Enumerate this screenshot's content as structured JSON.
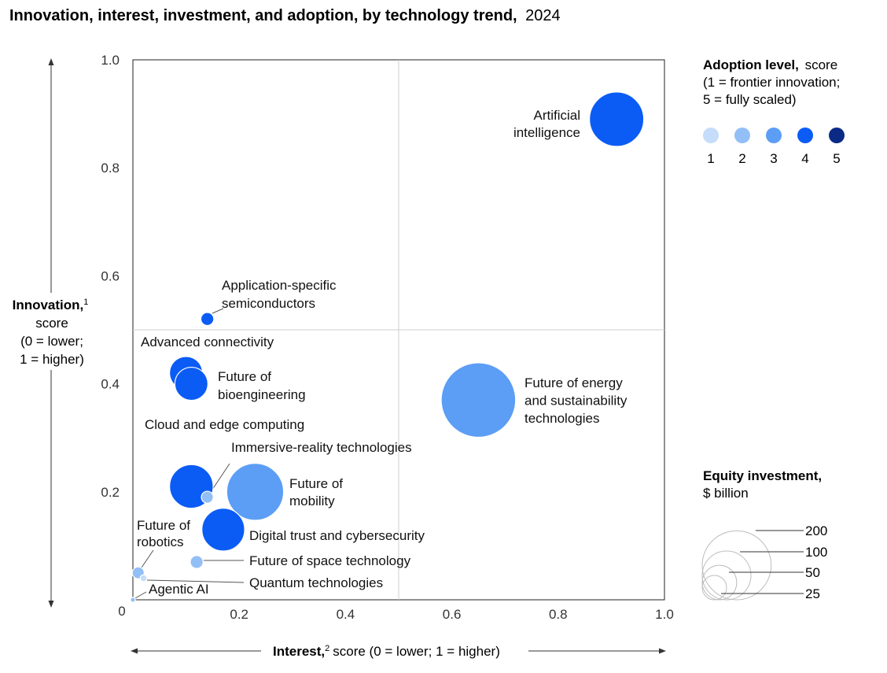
{
  "header": {
    "title_bold": "Innovation, interest, investment, and adoption, by technology trend,",
    "title_year": "2024"
  },
  "axes": {
    "y_title_bold": "Innovation,",
    "y_title_sup": "1",
    "y_title_lines": [
      "score",
      "(0 = lower;",
      "1 = higher)"
    ],
    "x_title_bold": "Interest,",
    "x_title_sup": "2",
    "x_title_rest": "score (0 = lower; 1 = higher)"
  },
  "adoption_legend": {
    "title_bold": "Adoption level,",
    "title_rest": "score",
    "lines": [
      "(1 = frontier innovation;",
      "5 = fully scaled)"
    ],
    "levels": [
      {
        "label": "1",
        "color": "#c6dcfb"
      },
      {
        "label": "2",
        "color": "#93bff7"
      },
      {
        "label": "3",
        "color": "#5c9ef5"
      },
      {
        "label": "4",
        "color": "#0b5cf5"
      },
      {
        "label": "5",
        "color": "#0b2a86"
      }
    ]
  },
  "size_legend": {
    "title_bold": "Equity investment,",
    "title_rest": "$ billion",
    "sizes": [
      {
        "label": "200",
        "value": 200
      },
      {
        "label": "100",
        "value": 100
      },
      {
        "label": "50",
        "value": 50
      },
      {
        "label": "25",
        "value": 25
      }
    ]
  },
  "chart_data": {
    "type": "scatter",
    "xlim": [
      0,
      1
    ],
    "ylim": [
      0,
      1
    ],
    "origin_label": "0",
    "x_ticks": [
      {
        "value": 0.2,
        "label": "0.2"
      },
      {
        "value": 0.4,
        "label": "0.4"
      },
      {
        "value": 0.6,
        "label": "0.6"
      },
      {
        "value": 0.8,
        "label": "0.8"
      },
      {
        "value": 1.0,
        "label": "1.0"
      }
    ],
    "y_ticks": [
      {
        "value": 0.2,
        "label": "0.2"
      },
      {
        "value": 0.4,
        "label": "0.4"
      },
      {
        "value": 0.6,
        "label": "0.6"
      },
      {
        "value": 0.8,
        "label": "0.8"
      },
      {
        "value": 1.0,
        "label": "1.0"
      }
    ],
    "quadrant_lines": {
      "x": 0.5,
      "y": 0.5
    },
    "points": [
      {
        "label": [
          "Artificial",
          "intelligence"
        ],
        "x": 0.91,
        "y": 0.89,
        "investment": 124,
        "adoption": 4
      },
      {
        "label": [
          "Application-specific",
          "semiconductors"
        ],
        "x": 0.14,
        "y": 0.52,
        "investment": 7,
        "adoption": 4
      },
      {
        "label": [
          "Advanced connectivity"
        ],
        "x": 0.1,
        "y": 0.42,
        "investment": 46,
        "adoption": 4
      },
      {
        "label": [
          "Future of",
          "bioengineering"
        ],
        "x": 0.11,
        "y": 0.4,
        "investment": 46,
        "adoption": 4
      },
      {
        "label": [
          "Future of energy",
          "and sustainability",
          "technologies"
        ],
        "x": 0.65,
        "y": 0.37,
        "investment": 233,
        "adoption": 3
      },
      {
        "label": [
          "Cloud and edge computing"
        ],
        "x": 0.11,
        "y": 0.21,
        "investment": 80,
        "adoption": 4
      },
      {
        "label": [
          "Immersive-reality technologies"
        ],
        "x": 0.14,
        "y": 0.19,
        "investment": 6,
        "adoption": 2
      },
      {
        "label": [
          "Future of",
          "mobility"
        ],
        "x": 0.23,
        "y": 0.2,
        "investment": 136,
        "adoption": 3
      },
      {
        "label": [
          "Digital trust and cybersecurity"
        ],
        "x": 0.17,
        "y": 0.13,
        "investment": 77,
        "adoption": 4
      },
      {
        "label": [
          "Future of space technology"
        ],
        "x": 0.12,
        "y": 0.07,
        "investment": 7,
        "adoption": 2
      },
      {
        "label": [
          "Future of",
          "robotics"
        ],
        "x": 0.01,
        "y": 0.05,
        "investment": 6,
        "adoption": 2
      },
      {
        "label": [
          "Quantum technologies"
        ],
        "x": 0.02,
        "y": 0.04,
        "investment": 2,
        "adoption": 1
      },
      {
        "label": [
          "Agentic AI"
        ],
        "x": 0.0,
        "y": 0.0,
        "investment": 1,
        "adoption": 2
      }
    ]
  }
}
